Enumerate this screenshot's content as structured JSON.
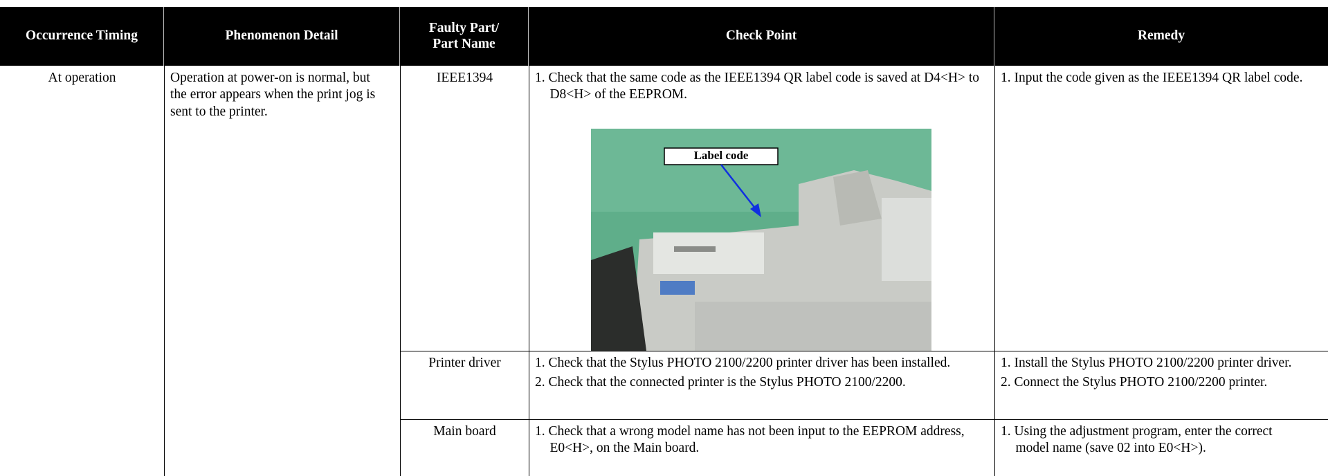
{
  "table": {
    "header": [
      "Occurrence Timing",
      "Phenomenon Detail",
      "Faulty Part/ Part Name",
      "Check Point",
      "Remedy"
    ],
    "timing": "At operation",
    "phenomenon": "Operation at power-on is normal, but the error appears when the print jog is sent to the printer.",
    "rows": [
      {
        "part": "IEEE1394",
        "check": [
          "1. Check that the same code as the IEEE1394 QR label code is saved at D4<H> to D8<H> of the EEPROM."
        ],
        "remedy": [
          "1. Input the code given as the IEEE1394 QR label code."
        ]
      },
      {
        "part": "Printer driver",
        "check": [
          "1. Check that the Stylus PHOTO 2100/2200 printer driver has been installed.",
          "2. Check that the connected printer is the Stylus PHOTO 2100/2200."
        ],
        "remedy": [
          "1. Install the Stylus PHOTO 2100/2200 printer driver.",
          "2. Connect the Stylus PHOTO 2100/2200 printer."
        ]
      },
      {
        "part": "Main board",
        "check": [
          "1. Check that a wrong model name has not been input to the EEPROM address, E0<H>, on the Main board."
        ],
        "remedy": [
          "1. Using the adjustment program, enter the correct model name (save 02 into E0<H>)."
        ]
      }
    ]
  },
  "figure": {
    "label": "Label code"
  }
}
